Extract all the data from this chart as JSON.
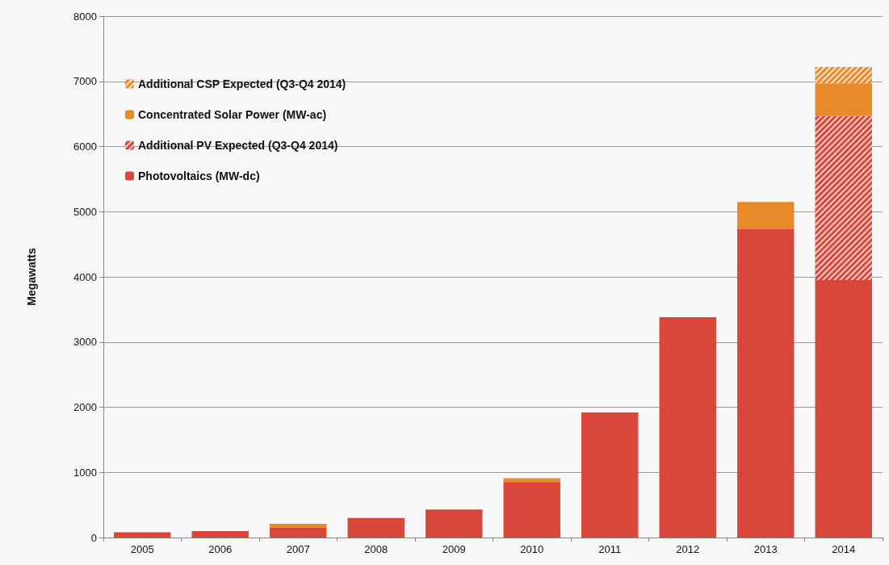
{
  "chart_data": {
    "type": "bar",
    "ylabel": "Megawatts",
    "categories": [
      "2005",
      "2006",
      "2007",
      "2008",
      "2009",
      "2010",
      "2011",
      "2012",
      "2013",
      "2014"
    ],
    "stacked": true,
    "series": [
      {
        "name": "Photovoltaics (MW-dc)",
        "color": "#d9463a",
        "values": [
          80,
          100,
          150,
          300,
          430,
          850,
          1920,
          3380,
          4730,
          3950
        ]
      },
      {
        "name": "Additional PV Expected (Q3-Q4 2014)",
        "color": "#d9463a",
        "values": [
          null,
          null,
          null,
          null,
          null,
          null,
          null,
          null,
          null,
          2520
        ]
      },
      {
        "name": "Concentrated Solar Power (MW-ac)",
        "color": "#e8892a",
        "values": [
          null,
          null,
          60,
          null,
          null,
          60,
          null,
          null,
          420,
          500
        ]
      },
      {
        "name": "Additional CSP Expected (Q3-Q4 2014)",
        "color": "#e8892a",
        "values": [
          null,
          null,
          null,
          null,
          null,
          null,
          null,
          null,
          null,
          250
        ]
      }
    ],
    "ylim": [
      0,
      8000
    ],
    "yticks": [
      0,
      1000,
      2000,
      3000,
      4000,
      5000,
      6000,
      7000,
      8000
    ],
    "grid": "y",
    "legend": "top left"
  }
}
